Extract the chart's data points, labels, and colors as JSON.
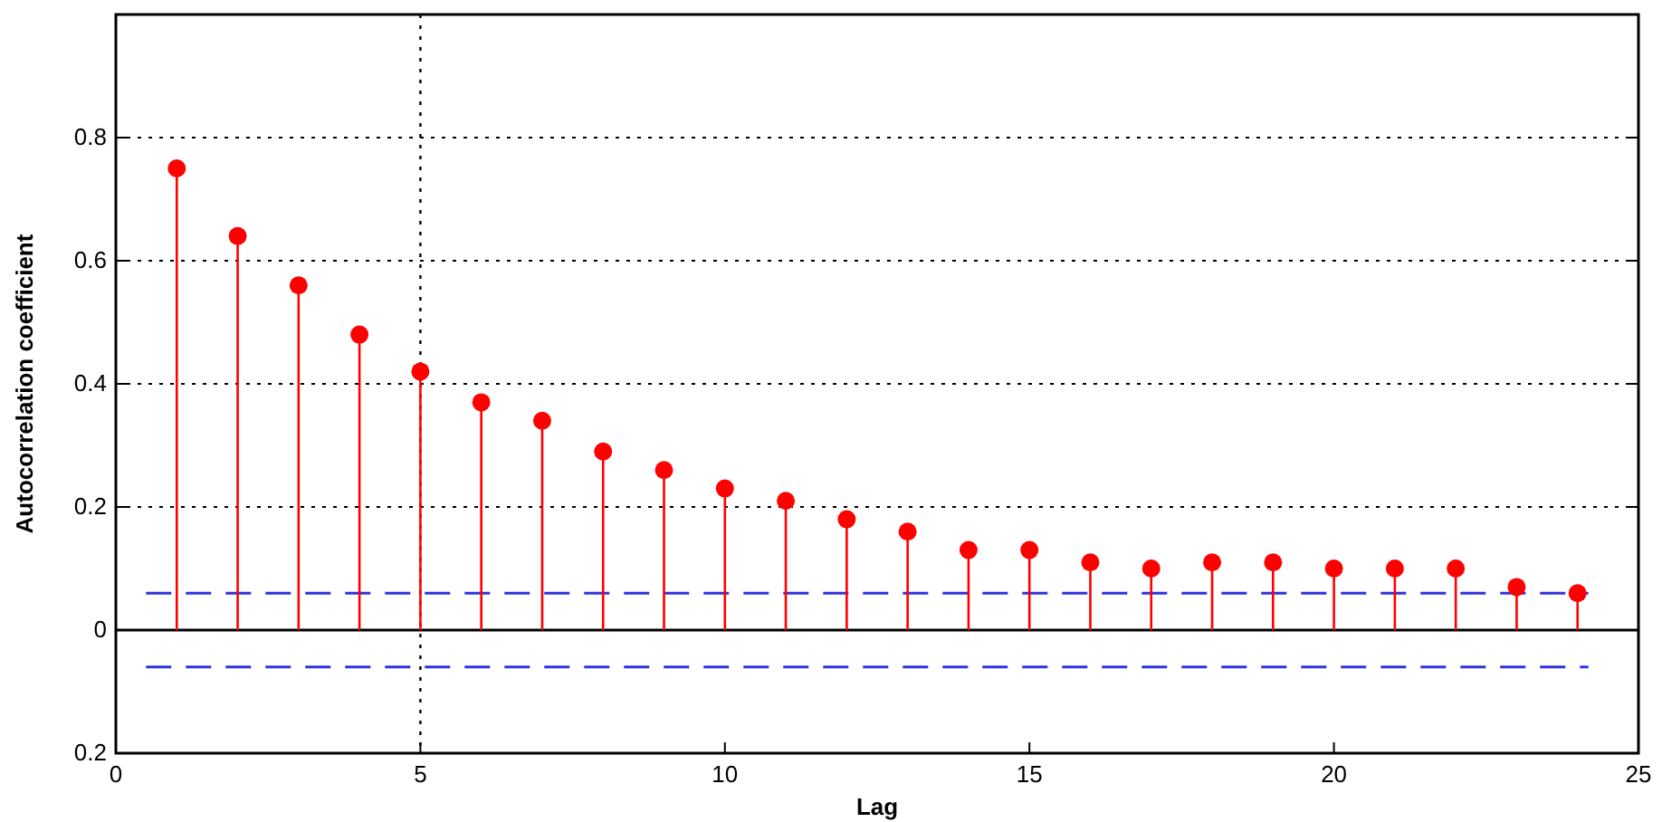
{
  "chart_data": {
    "type": "lollipop",
    "xlabel": "Lag",
    "ylabel": "Autocorrelation coefficient",
    "x": [
      1,
      2,
      3,
      4,
      5,
      6,
      7,
      8,
      9,
      10,
      11,
      12,
      13,
      14,
      15,
      16,
      17,
      18,
      19,
      20,
      21,
      22,
      23,
      24
    ],
    "values": [
      0.75,
      0.64,
      0.56,
      0.48,
      0.42,
      0.37,
      0.34,
      0.29,
      0.26,
      0.23,
      0.21,
      0.18,
      0.16,
      0.13,
      0.13,
      0.11,
      0.1,
      0.11,
      0.11,
      0.1,
      0.1,
      0.1,
      0.07,
      0.06
    ],
    "color": "#ff0000",
    "marker": "circle",
    "xlim": [
      0,
      25
    ],
    "xticks": [
      0,
      5,
      10,
      15,
      20,
      25
    ],
    "ylim": [
      -0.2,
      1
    ],
    "yticks": [
      {
        "value": -0.2,
        "label": "0.2"
      },
      0,
      0.2,
      0.4,
      0.6,
      0.8
    ],
    "grid": "y",
    "ref_lines": [
      {
        "axis": "x",
        "value": 5,
        "color": "#000000",
        "line_style": "dotted"
      },
      {
        "axis": "y",
        "value": 0,
        "color": "#000000",
        "line_style": "solid"
      },
      {
        "axis": "y",
        "value": 0.06,
        "color": "#3333dd",
        "line_style": "dashed"
      },
      {
        "axis": "y",
        "value": -0.06,
        "color": "#3333dd",
        "line_style": "dashed"
      }
    ]
  }
}
